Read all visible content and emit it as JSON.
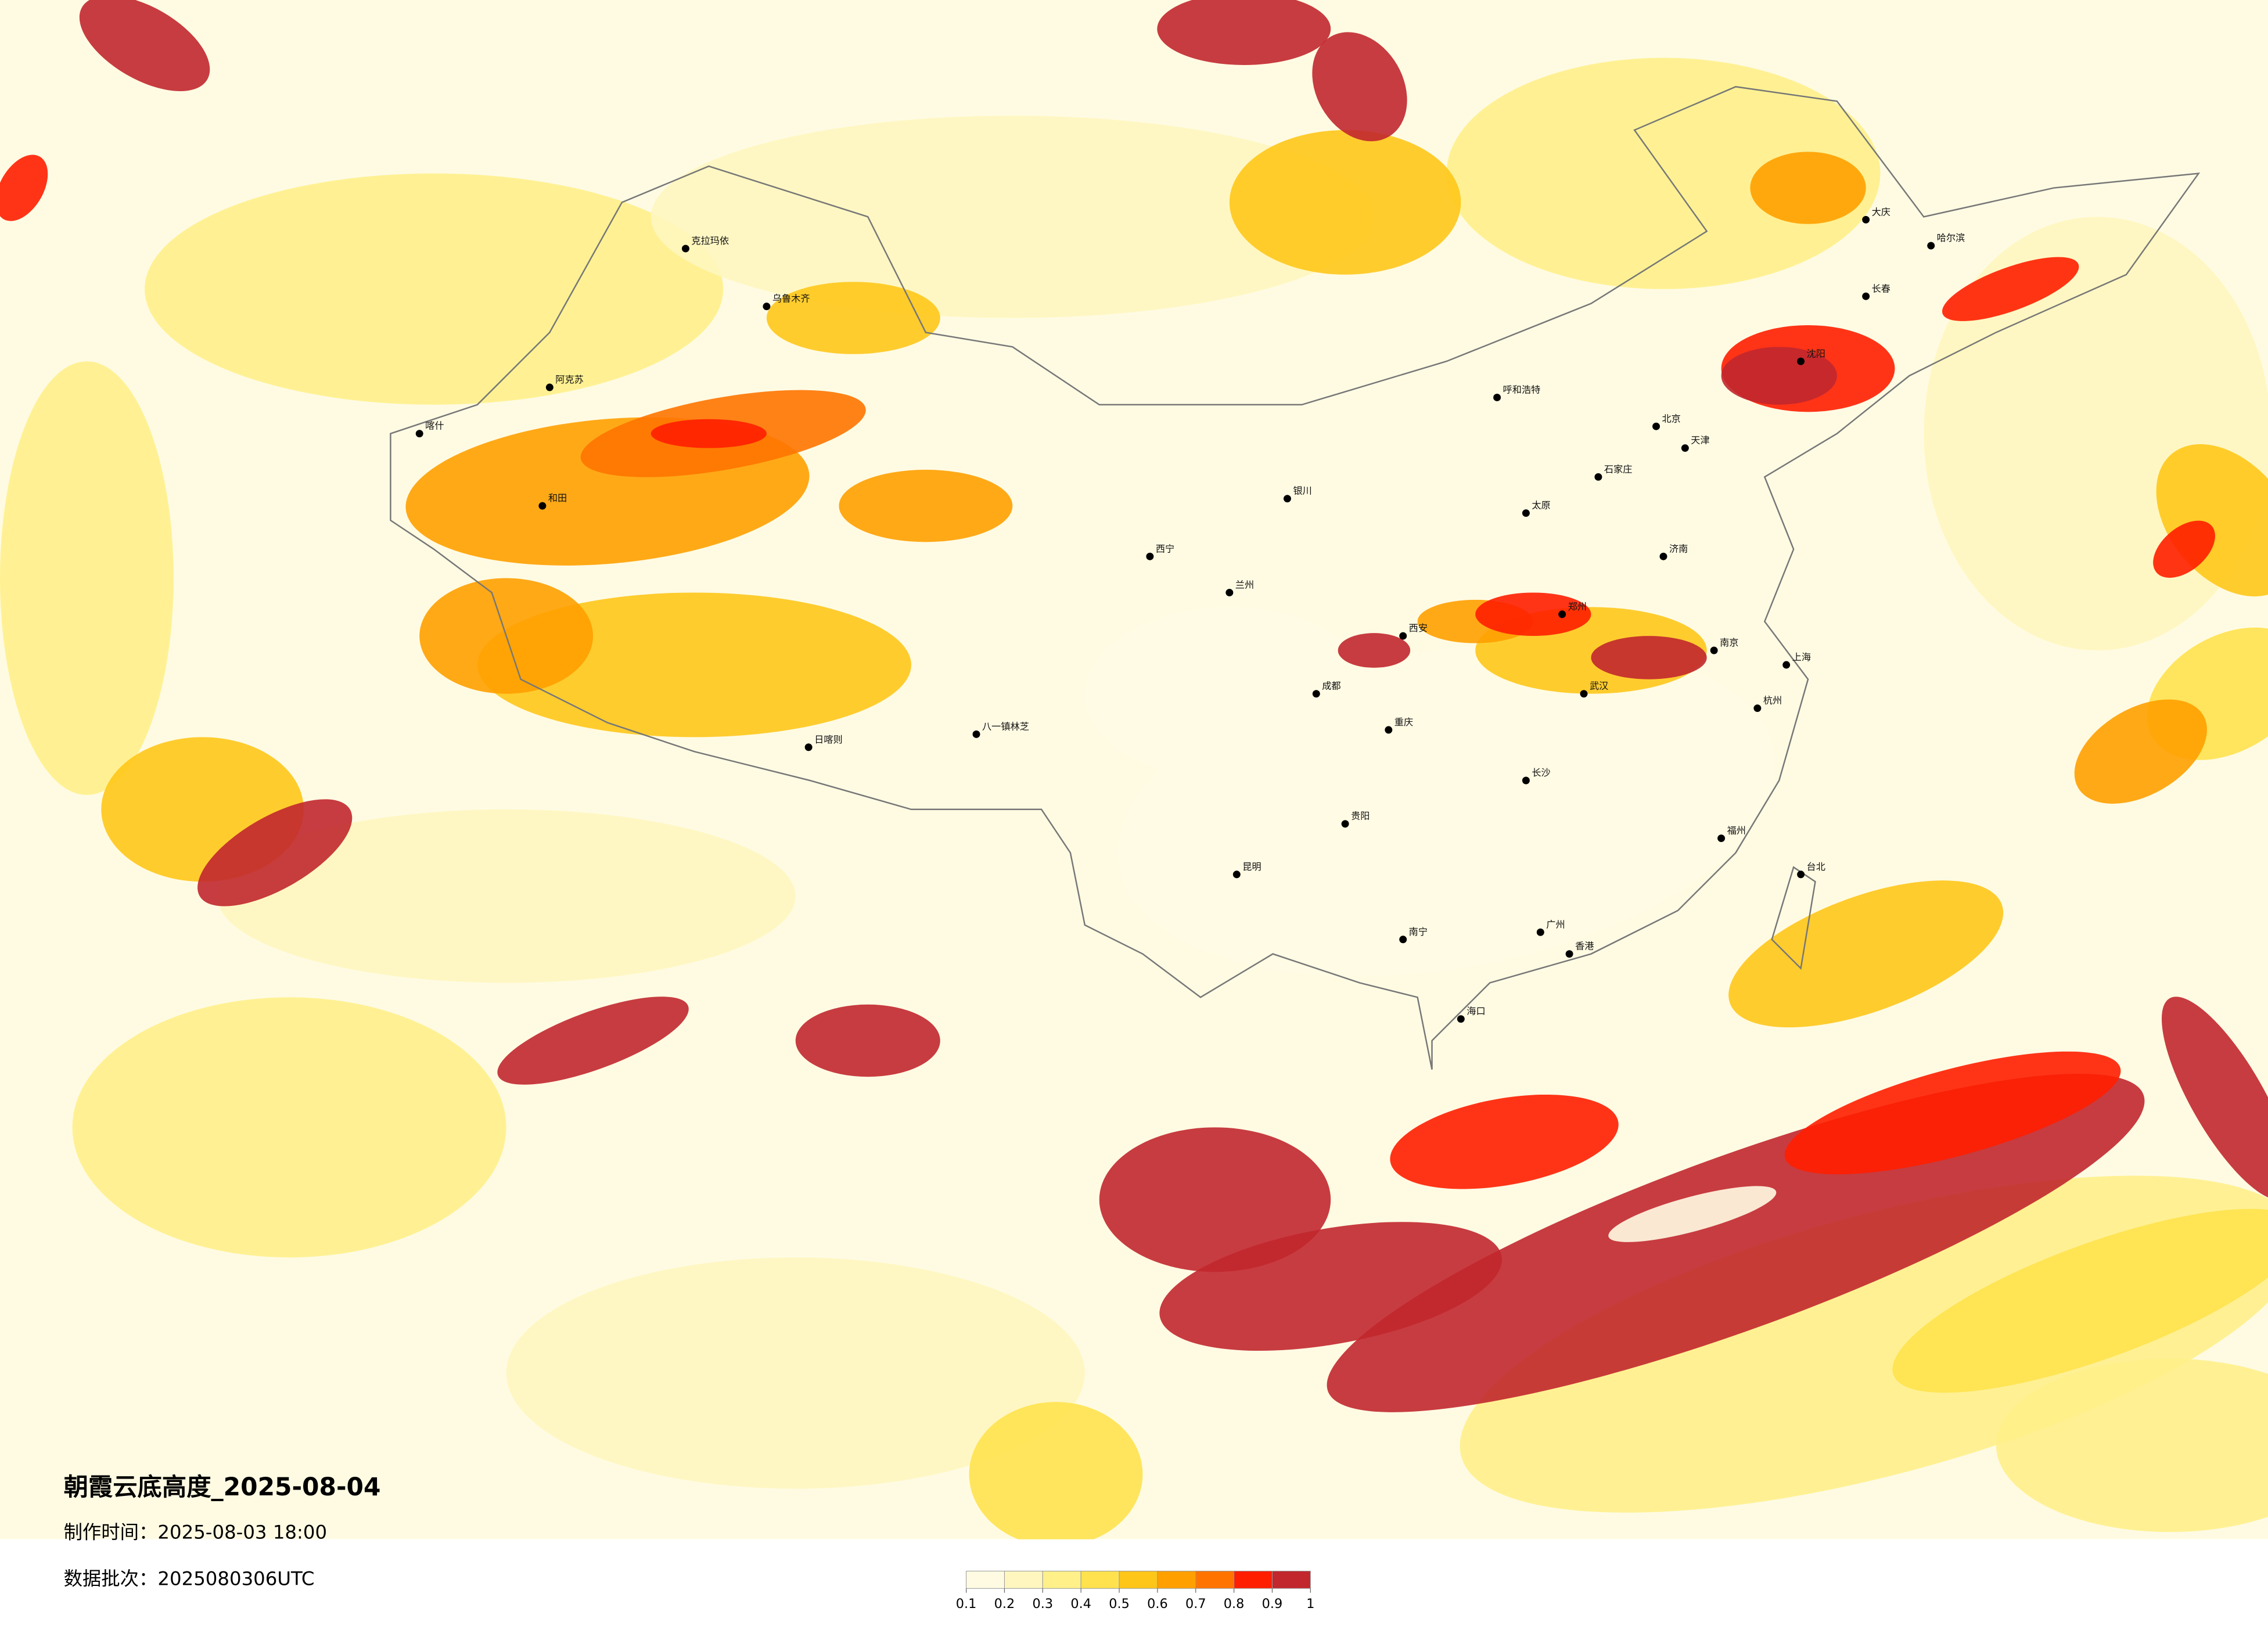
{
  "header": {
    "title": "朝霞云底高度_2025-08-04",
    "made_time": "制作时间：2025-08-03 18:00",
    "batch": "数据批次：2025080306UTC"
  },
  "legend": {
    "colors": [
      "#fffbe3",
      "#fff6bf",
      "#fff08a",
      "#ffe24e",
      "#ffc61a",
      "#ffa000",
      "#ff7400",
      "#ff1e00",
      "#c1272d"
    ],
    "ticks": [
      0.1,
      0.2,
      0.3,
      0.4,
      0.5,
      0.6,
      0.7,
      0.8,
      0.9,
      1
    ]
  },
  "cities": [
    "乌鲁木齐",
    "克拉玛依",
    "喀什",
    "和田",
    "阿克苏",
    "日喀则",
    "八一镇林芝",
    "西宁",
    "兰州",
    "银川",
    "呼和浩特",
    "成都",
    "重庆",
    "昆明",
    "贵阳",
    "南宁",
    "广州",
    "香港",
    "海口",
    "长沙",
    "武汉",
    "南京",
    "上海",
    "杭州",
    "福州",
    "台北",
    "郑州",
    "西安",
    "太原",
    "石家庄",
    "北京",
    "天津",
    "济南",
    "沈阳",
    "长春",
    "哈尔滨",
    "大庆"
  ]
}
